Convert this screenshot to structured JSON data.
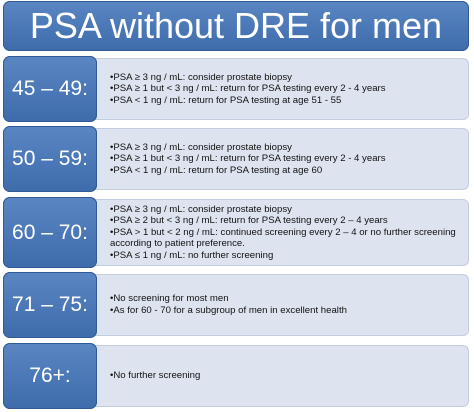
{
  "title": "PSA without DRE for men aged:",
  "rows": [
    {
      "age": "45 – 49:",
      "items": [
        "•PSA ≥ 3 ng / mL: consider prostate biopsy",
        "•PSA ≥ 1 but < 3 ng / mL: return for PSA testing every 2 - 4 years",
        "•PSA < 1  ng / mL: return for PSA testing at age 51 - 55"
      ]
    },
    {
      "age": "50 – 59:",
      "items": [
        "•PSA ≥ 3 ng / mL: consider prostate biopsy",
        "•PSA ≥ 1 but < 3 ng / mL: return for PSA testing every 2 - 4 years",
        "•PSA < 1 ng / mL: return for PSA testing at age 60"
      ]
    },
    {
      "age": "60 – 70:",
      "items": [
        "•PSA ≥ 3 ng / mL: consider prostate biopsy",
        "•PSA ≥ 2 but < 3 ng / mL: return for PSA testing every 2 – 4 years",
        "•PSA > 1 but < 2 ng / mL: continued screening every 2 – 4 or no further screening according to patient preference.",
        "•PSA ≤ 1 ng / mL: no further screening"
      ]
    },
    {
      "age": "71 – 75:",
      "items": [
        "•No screening for most men",
        "•As for 60 - 70 for a subgroup of men in excellent health"
      ]
    },
    {
      "age": "76+:",
      "items": [
        "•No further screening"
      ]
    }
  ]
}
